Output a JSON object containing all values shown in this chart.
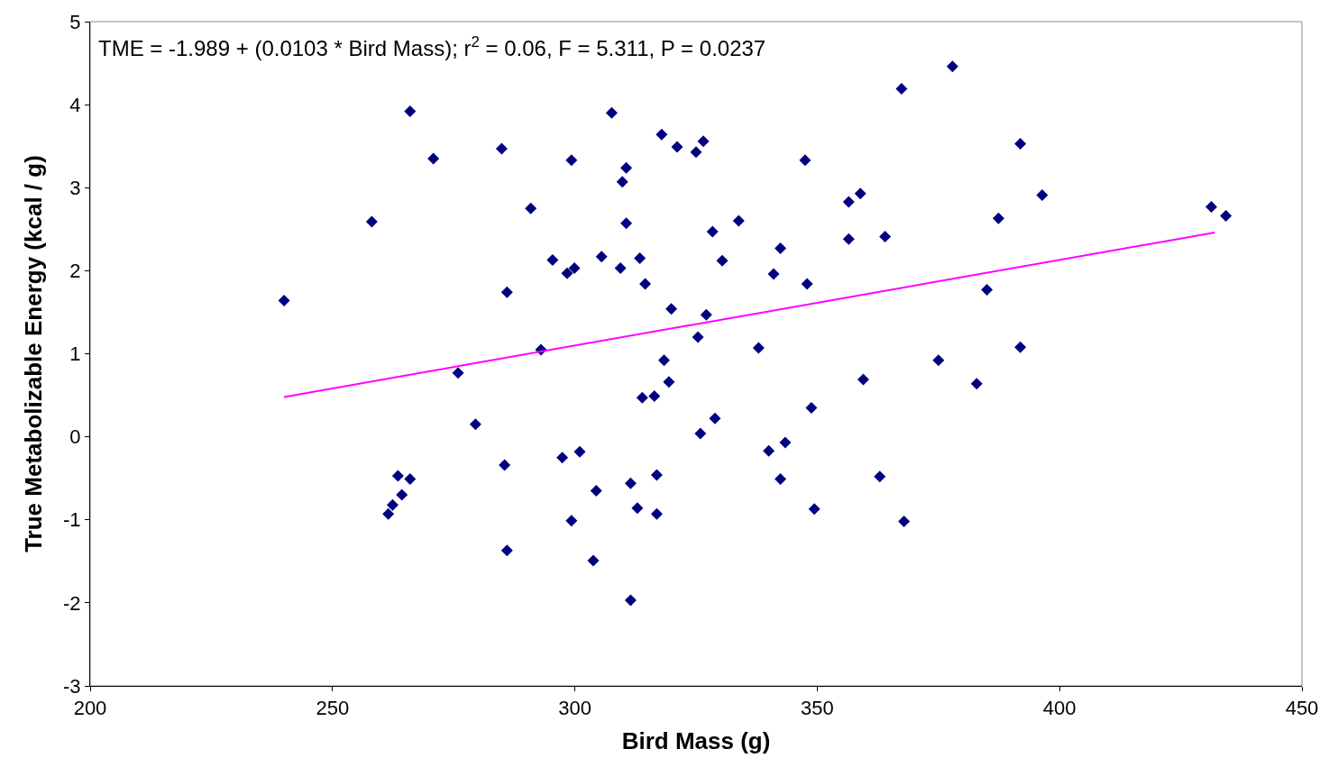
{
  "chart_data": {
    "type": "scatter",
    "xlabel": "Bird Mass (g)",
    "ylabel": "True Metabolizable Energy (kcal / g)",
    "annotations": [
      "TME = -1.989 + (0.0103 * Bird Mass); r$^{2}$ = 0.06, F = 5.311, P = 0.0237"
    ],
    "xlim": [
      200,
      450
    ],
    "xticks": [
      200,
      250,
      300,
      350,
      400,
      450
    ],
    "ylim": [
      -3,
      5
    ],
    "yticks": [
      -3,
      -2,
      -1,
      0,
      1,
      2,
      3,
      4,
      5
    ],
    "grid": false,
    "marker": "diamond",
    "series": [
      {
        "color": "#000080",
        "x": [
          240,
          258.1,
          266,
          270.8,
          284.9,
          286,
          290.9,
          275.9,
          279.5,
          293,
          295.4,
          299.3,
          298.4,
          299.9,
          305.5,
          307.6,
          309.8,
          310.6,
          310.6,
          309.4,
          313.4,
          314.5,
          317.9,
          321.1,
          325,
          326.5,
          328.4,
          319.9,
          330.4,
          327.1,
          325.4,
          318.4,
          319.4,
          313.9,
          316.4,
          325.9,
          328.9,
          333.8,
          342.4,
          341,
          337.9,
          347.9,
          347.5,
          356.5,
          358.9,
          356.5,
          364,
          367.4,
          377.9,
          348.8,
          359.5,
          375,
          382.9,
          385,
          387.4,
          391.9,
          391.9,
          396.4,
          431.3,
          434.3,
          340,
          343.4,
          342.4,
          349.4,
          362.9,
          367.9,
          261.5,
          262.4,
          264.3,
          263.5,
          266,
          285.5,
          286,
          297.4,
          301,
          299.3,
          304.4,
          303.8,
          311.5,
          311.5,
          312.9,
          316.9,
          316.9
        ],
        "values": [
          1.64,
          2.59,
          3.92,
          3.35,
          3.47,
          1.74,
          2.75,
          0.77,
          0.15,
          1.05,
          2.13,
          3.33,
          1.97,
          2.03,
          2.17,
          3.9,
          3.07,
          3.24,
          2.57,
          2.03,
          2.15,
          1.84,
          3.64,
          3.49,
          3.43,
          3.56,
          2.47,
          1.54,
          2.12,
          1.47,
          1.2,
          0.92,
          0.66,
          0.47,
          0.49,
          0.04,
          0.22,
          2.6,
          2.27,
          1.96,
          1.07,
          1.84,
          3.33,
          2.83,
          2.93,
          2.38,
          2.41,
          4.19,
          4.46,
          0.35,
          0.69,
          0.92,
          0.64,
          1.77,
          2.63,
          3.53,
          1.08,
          2.91,
          2.77,
          2.66,
          -0.17,
          -0.07,
          -0.51,
          -0.87,
          -0.48,
          -1.02,
          -0.93,
          -0.82,
          -0.7,
          -0.47,
          -0.51,
          -0.34,
          -1.37,
          -0.25,
          -0.18,
          -1.01,
          -0.65,
          -1.49,
          -1.97,
          -0.56,
          -0.86,
          -0.46,
          -0.93
        ]
      },
      {
        "type": "line",
        "color": "#ff00ff",
        "x": [
          240,
          432
        ],
        "values": [
          0.48,
          2.46
        ],
        "marker": "none",
        "line_style": "solid"
      }
    ]
  }
}
